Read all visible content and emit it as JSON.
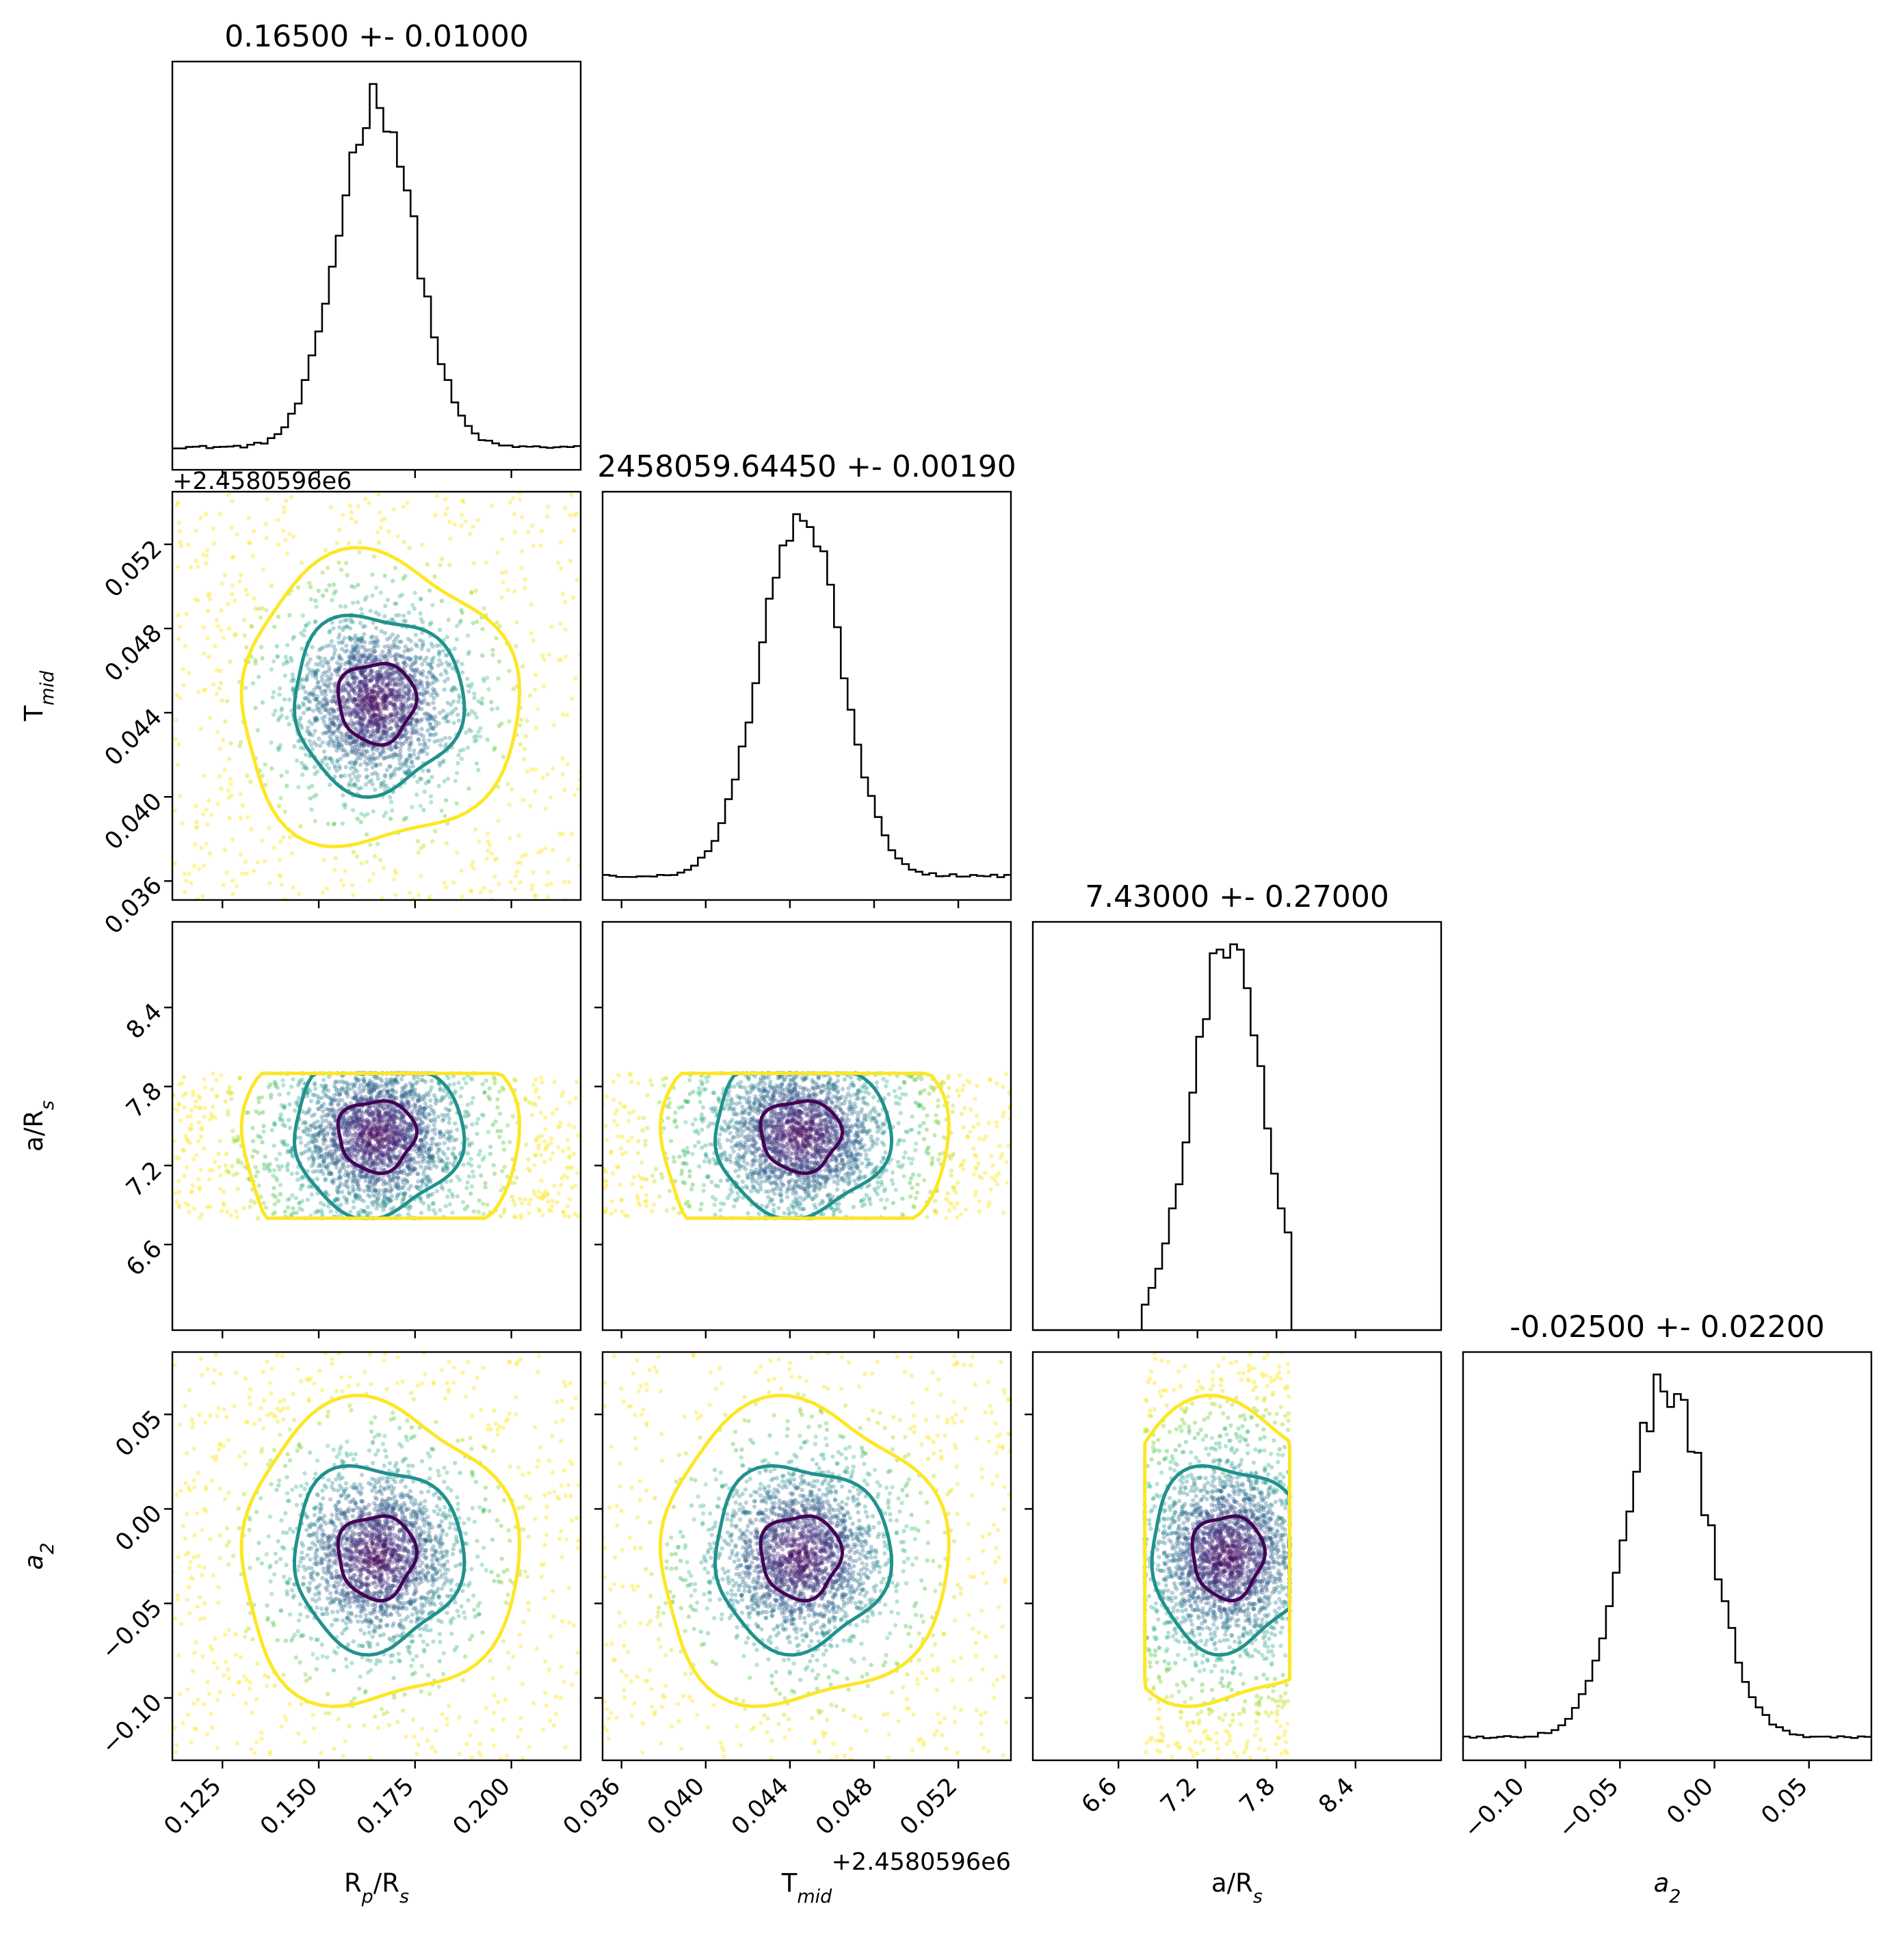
{
  "chart_data": {
    "type": "corner",
    "parameters": [
      {
        "name": "Rp/Rs",
        "label": "R_p/R_s",
        "mean": 0.165,
        "std": 0.01,
        "range": [
          0.112,
          0.218
        ]
      },
      {
        "name": "Tmid",
        "label": "T_mid",
        "mean": 0.0445,
        "std": 0.0019,
        "range": [
          0.0351,
          0.0545
        ],
        "offset": "+2.4580596e6"
      },
      {
        "name": "a/Rs",
        "label": "a/R_s",
        "mean": 7.43,
        "std": 0.27,
        "range": [
          5.95,
          9.05
        ]
      },
      {
        "name": "a2",
        "label": "a_2",
        "mean": -0.025,
        "std": 0.022,
        "range": [
          -0.133,
          0.083
        ]
      }
    ],
    "titles": [
      "0.16500 +- 0.01000",
      "2458059.64450 +- 0.00190",
      "7.43000 +- 0.27000",
      "-0.02500 +- 0.02200"
    ],
    "axis_labels": {
      "x": [
        "R$_p$/R$_s$",
        "T$_{mid}$",
        "a/R$_s$",
        "$a_2$"
      ],
      "y": [
        "T$_{mid}$",
        "a/R$_s$",
        "$a_2$"
      ]
    },
    "ticks": [
      [
        0.125,
        0.15,
        0.175,
        0.2
      ],
      [
        0.036,
        0.04,
        0.044,
        0.048,
        0.052
      ],
      [
        6.6,
        7.2,
        7.8,
        8.4
      ],
      [
        -0.1,
        -0.05,
        0.0,
        0.05
      ]
    ],
    "tick_labels": [
      [
        "0.125",
        "0.150",
        "0.175",
        "0.200"
      ],
      [
        "0.036",
        "0.040",
        "0.044",
        "0.048",
        "0.052"
      ],
      [
        "6.6",
        "7.2",
        "7.8",
        "8.4"
      ],
      [
        "−0.10",
        "−0.05",
        "0.00",
        "0.05"
      ]
    ],
    "offset_labels": {
      "y_row1": "+2.4580596e6",
      "x_col1": "+2.4580596e6"
    },
    "a_Rs_sample_bounds": [
      6.8,
      7.9
    ],
    "contour_colors": [
      "#440154",
      "#21918c",
      "#fde725"
    ],
    "point_colormap": "viridis"
  }
}
